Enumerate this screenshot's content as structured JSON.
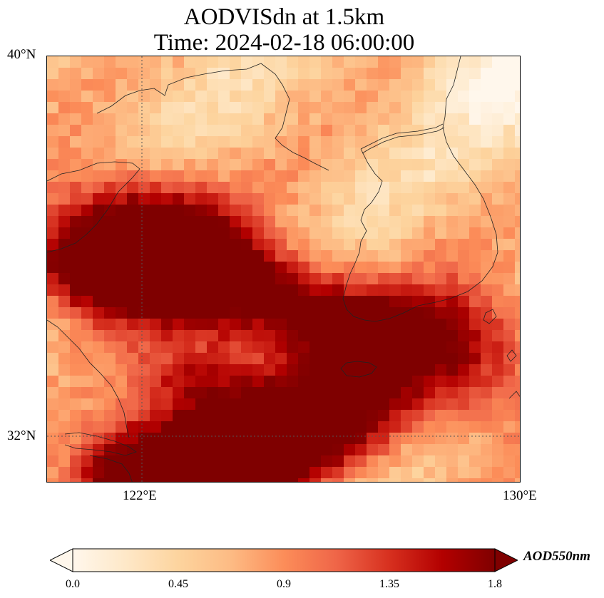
{
  "title": {
    "line1": "AODVISdn at 1.5km",
    "line2": "Time: 2024-02-18 06:00:00"
  },
  "map": {
    "extent": {
      "lon_min": 120,
      "lon_max": 130,
      "lat_min": 31,
      "lat_max": 40
    },
    "lat_ticks": [
      {
        "value": 40,
        "label": "40°N"
      },
      {
        "value": 32,
        "label": "32°N"
      }
    ],
    "lon_ticks": [
      {
        "value": 122,
        "label": "122°E"
      },
      {
        "value": 130,
        "label": "130°E"
      }
    ],
    "gridlines": {
      "lon": 122,
      "lat": 32,
      "style": "dotted"
    }
  },
  "colorbar": {
    "colormap": "OrRd",
    "vmin": 0.0,
    "vmax": 1.8,
    "extend": "both",
    "unit_label": "AOD550nm",
    "tick_labels": [
      "0.0",
      "0.45",
      "0.9",
      "1.35",
      "1.8"
    ],
    "colors": [
      "#fff7ec",
      "#fee8c8",
      "#fdd49e",
      "#fdbb84",
      "#fc8d59",
      "#ef6548",
      "#d7301f",
      "#b30000",
      "#7f0000"
    ]
  }
}
